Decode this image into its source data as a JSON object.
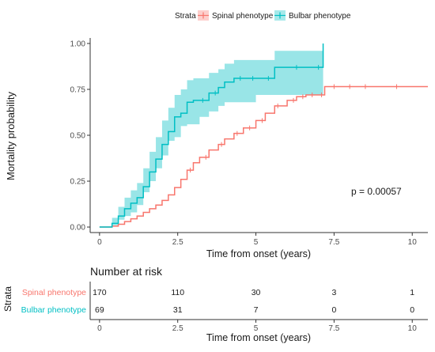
{
  "chart_data": [
    {
      "type": "line",
      "subtype": "kaplan-meier cumulative incidence with confidence bands",
      "xlabel": "Time from onset (years)",
      "ylabel": "Mortality probability",
      "xlim": [
        -0.3,
        10.5
      ],
      "ylim": [
        -0.03,
        1.03
      ],
      "x_ticks": [
        "0",
        "2.5",
        "5",
        "7.5",
        "10"
      ],
      "y_ticks": [
        "0.00",
        "0.25",
        "0.50",
        "0.75",
        "1.00"
      ],
      "grid": false,
      "legend": {
        "title": "Strata",
        "position": "top",
        "entries": [
          "Spinal phenotype",
          "Bulbar phenotype"
        ]
      },
      "annotation": "p = 0.00057",
      "series": [
        {
          "name": "Spinal phenotype",
          "color": "#f8766d",
          "x": [
            0,
            0.4,
            0.6,
            0.8,
            1.0,
            1.2,
            1.4,
            1.6,
            1.8,
            2.0,
            2.2,
            2.4,
            2.6,
            2.8,
            3.0,
            3.2,
            3.5,
            3.8,
            4.0,
            4.3,
            4.6,
            5.0,
            5.3,
            5.6,
            6.0,
            6.3,
            6.6,
            7.0,
            7.2,
            10.5
          ],
          "y": [
            0,
            0.005,
            0.015,
            0.03,
            0.045,
            0.06,
            0.08,
            0.1,
            0.12,
            0.145,
            0.175,
            0.215,
            0.26,
            0.31,
            0.35,
            0.38,
            0.42,
            0.45,
            0.48,
            0.51,
            0.54,
            0.58,
            0.62,
            0.66,
            0.69,
            0.71,
            0.72,
            0.72,
            0.765,
            0.765
          ],
          "censored_x": [
            2.9,
            3.4,
            3.9,
            4.4,
            4.8,
            5.2,
            5.7,
            6.2,
            6.5,
            6.8,
            7.1,
            7.5,
            8.0,
            8.5,
            9.5
          ]
        },
        {
          "name": "Bulbar phenotype",
          "color": "#00bfc4",
          "x": [
            0,
            0.4,
            0.6,
            0.8,
            1.0,
            1.2,
            1.4,
            1.6,
            1.8,
            2.0,
            2.2,
            2.4,
            2.6,
            2.8,
            3.0,
            3.2,
            3.5,
            3.8,
            4.0,
            4.3,
            4.6,
            5.0,
            5.6,
            7.1,
            7.15
          ],
          "y": [
            0,
            0.02,
            0.06,
            0.1,
            0.13,
            0.16,
            0.22,
            0.3,
            0.37,
            0.45,
            0.52,
            0.6,
            0.62,
            0.68,
            0.69,
            0.69,
            0.73,
            0.76,
            0.79,
            0.81,
            0.81,
            0.81,
            0.87,
            0.87,
            1.0
          ],
          "lower": [
            0,
            0.0,
            0.01,
            0.04,
            0.06,
            0.08,
            0.12,
            0.19,
            0.25,
            0.32,
            0.39,
            0.47,
            0.49,
            0.55,
            0.56,
            0.56,
            0.6,
            0.63,
            0.66,
            0.68,
            0.68,
            0.68,
            0.72,
            0.72,
            0.72
          ],
          "upper": [
            0,
            0.05,
            0.11,
            0.16,
            0.2,
            0.24,
            0.32,
            0.41,
            0.49,
            0.58,
            0.65,
            0.72,
            0.75,
            0.8,
            0.81,
            0.81,
            0.84,
            0.86,
            0.89,
            0.91,
            0.91,
            0.91,
            0.96,
            0.96,
            1.0
          ],
          "censored_x": [
            3.3,
            3.7,
            4.5,
            4.9,
            5.4,
            6.3,
            7.0
          ]
        }
      ]
    },
    {
      "type": "table",
      "title": "Number at risk",
      "xlabel": "Time from onset (years)",
      "ylabel": "Strata",
      "columns": [
        "0",
        "2.5",
        "5",
        "7.5",
        "10"
      ],
      "rows": [
        {
          "name": "Spinal phenotype",
          "color": "#f8766d",
          "values": [
            "170",
            "110",
            "30",
            "3",
            "1"
          ]
        },
        {
          "name": "Bulbar phenotype",
          "color": "#00bfc4",
          "values": [
            "69",
            "31",
            "7",
            "0",
            "0"
          ]
        }
      ]
    }
  ]
}
